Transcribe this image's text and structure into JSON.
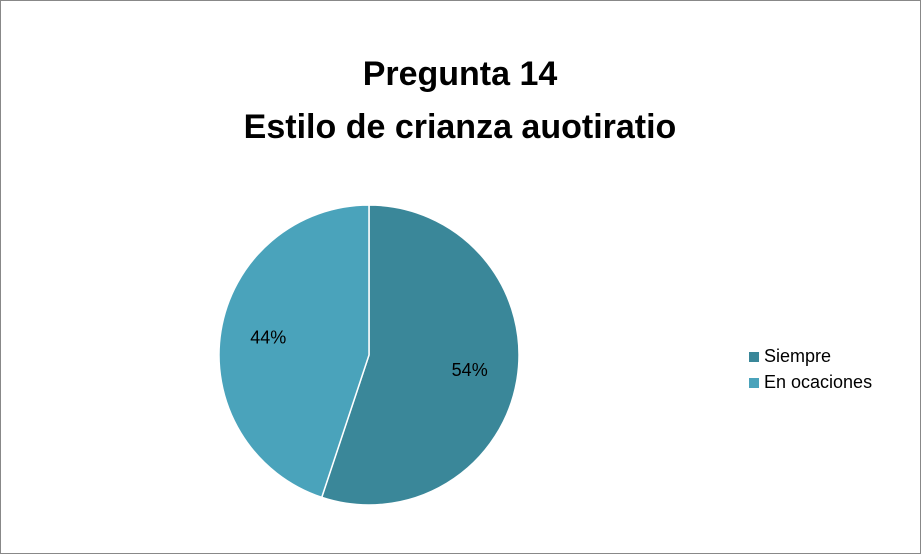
{
  "chart_data": {
    "type": "pie",
    "title": "Pregunta 14",
    "subtitle": "Estilo de crianza auotiratio",
    "categories": [
      "Siempre",
      "En ocaciones"
    ],
    "values": [
      54,
      44
    ],
    "value_labels": [
      "54%",
      "44%"
    ],
    "colors": [
      "#3a8799",
      "#4aa3bb"
    ],
    "legend": "right"
  }
}
